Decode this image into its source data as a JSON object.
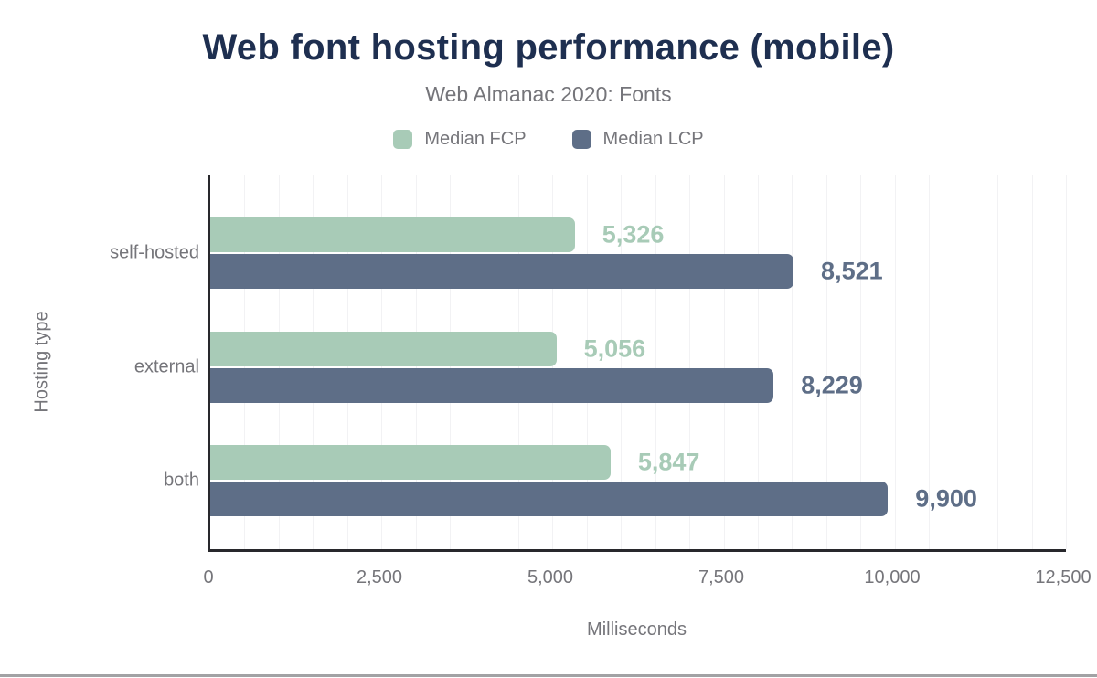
{
  "chart_data": {
    "type": "bar",
    "orientation": "horizontal",
    "title": "Web font hosting performance (mobile)",
    "subtitle": "Web Almanac 2020: Fonts",
    "categories": [
      "self-hosted",
      "external",
      "both"
    ],
    "series": [
      {
        "name": "Median FCP",
        "color": "#a8cbb7",
        "values": [
          5326,
          5056,
          5847
        ]
      },
      {
        "name": "Median LCP",
        "color": "#5e6e87",
        "values": [
          8521,
          8229,
          9900
        ]
      }
    ],
    "value_labels": [
      [
        "5,326",
        "5,056",
        "5,847"
      ],
      [
        "8,521",
        "8,229",
        "9,900"
      ]
    ],
    "xlabel": "Milliseconds",
    "ylabel": "Hosting type",
    "xlim": [
      0,
      12500
    ],
    "xtick_values": [
      0,
      2500,
      5000,
      7500,
      10000,
      12500
    ],
    "xtick_labels": [
      "0",
      "2,500",
      "5,000",
      "7,500",
      "10,000",
      "12,500"
    ],
    "grid": {
      "show": true,
      "minor_interval": 500
    },
    "legend_position": "top",
    "colors": {
      "title": "#1e2f50",
      "muted_text": "#75757a",
      "axis": "#28282c",
      "gridline": "#f2f2f4"
    }
  }
}
